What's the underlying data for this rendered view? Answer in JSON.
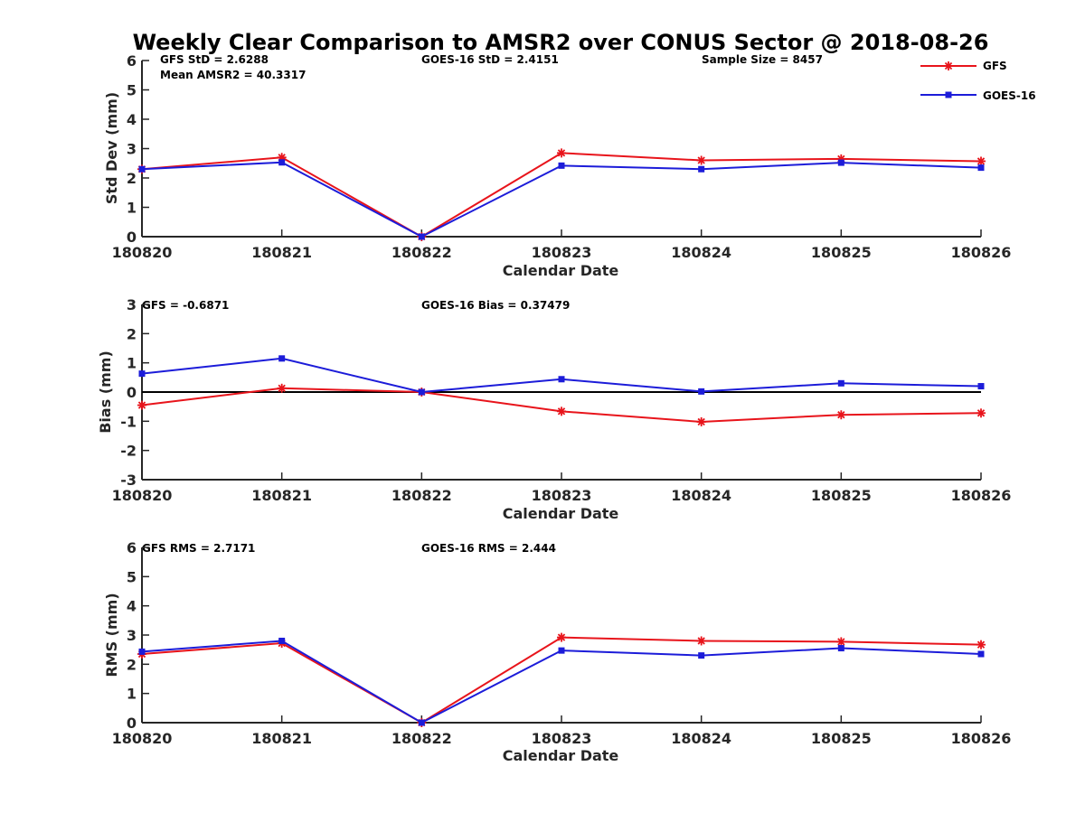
{
  "title": "Weekly Clear Comparison to AMSR2 over CONUS Sector @ 2018-08-26",
  "colors": {
    "GFS": "#e8141b",
    "GOES-16": "#1c1cd9",
    "axis": "#262626"
  },
  "legend": {
    "placement": "top-right",
    "entries": [
      {
        "name": "GFS",
        "color": "#e8141b",
        "marker": "asterisk"
      },
      {
        "name": "GOES-16",
        "color": "#1c1cd9",
        "marker": "square"
      }
    ]
  },
  "chart_data": [
    {
      "type": "line",
      "xlabel": "Calendar Date",
      "ylabel": "Std Dev (mm)",
      "categories": [
        "180820",
        "180821",
        "180822",
        "180823",
        "180824",
        "180825",
        "180826"
      ],
      "ylim": [
        0,
        6
      ],
      "yticks": [
        0,
        1,
        2,
        3,
        4,
        5,
        6
      ],
      "zero_line": false,
      "series": [
        {
          "name": "GFS",
          "values": [
            2.3,
            2.7,
            0.0,
            2.85,
            2.6,
            2.65,
            2.57
          ]
        },
        {
          "name": "GOES-16",
          "values": [
            2.3,
            2.53,
            0.0,
            2.42,
            2.3,
            2.52,
            2.35
          ]
        }
      ],
      "annotations": [
        "GFS StD = 2.6288",
        "Mean AMSR2 = 40.3317",
        "GOES-16 StD = 2.4151",
        "Sample Size = 8457"
      ]
    },
    {
      "type": "line",
      "xlabel": "Calendar Date",
      "ylabel": "Bias (mm)",
      "categories": [
        "180820",
        "180821",
        "180822",
        "180823",
        "180824",
        "180825",
        "180826"
      ],
      "ylim": [
        -3,
        3
      ],
      "yticks": [
        -3,
        -2,
        -1,
        0,
        1,
        2,
        3
      ],
      "zero_line": true,
      "series": [
        {
          "name": "GFS",
          "values": [
            -0.45,
            0.13,
            0.0,
            -0.66,
            -1.02,
            -0.78,
            -0.72
          ]
        },
        {
          "name": "GOES-16",
          "values": [
            0.63,
            1.15,
            0.0,
            0.44,
            0.02,
            0.3,
            0.2
          ]
        }
      ],
      "annotations": [
        "GFS = -0.6871",
        "GOES-16 Bias  = 0.37479"
      ]
    },
    {
      "type": "line",
      "xlabel": "Calendar Date",
      "ylabel": "RMS (mm)",
      "categories": [
        "180820",
        "180821",
        "180822",
        "180823",
        "180824",
        "180825",
        "180826"
      ],
      "ylim": [
        0,
        6
      ],
      "yticks": [
        0,
        1,
        2,
        3,
        4,
        5,
        6
      ],
      "zero_line": false,
      "series": [
        {
          "name": "GFS",
          "values": [
            2.35,
            2.72,
            0.0,
            2.92,
            2.8,
            2.77,
            2.67
          ]
        },
        {
          "name": "GOES-16",
          "values": [
            2.43,
            2.8,
            0.0,
            2.47,
            2.3,
            2.55,
            2.35
          ]
        }
      ],
      "annotations": [
        "GFS RMS = 2.7171",
        "GOES-16 RMS = 2.444"
      ]
    }
  ]
}
